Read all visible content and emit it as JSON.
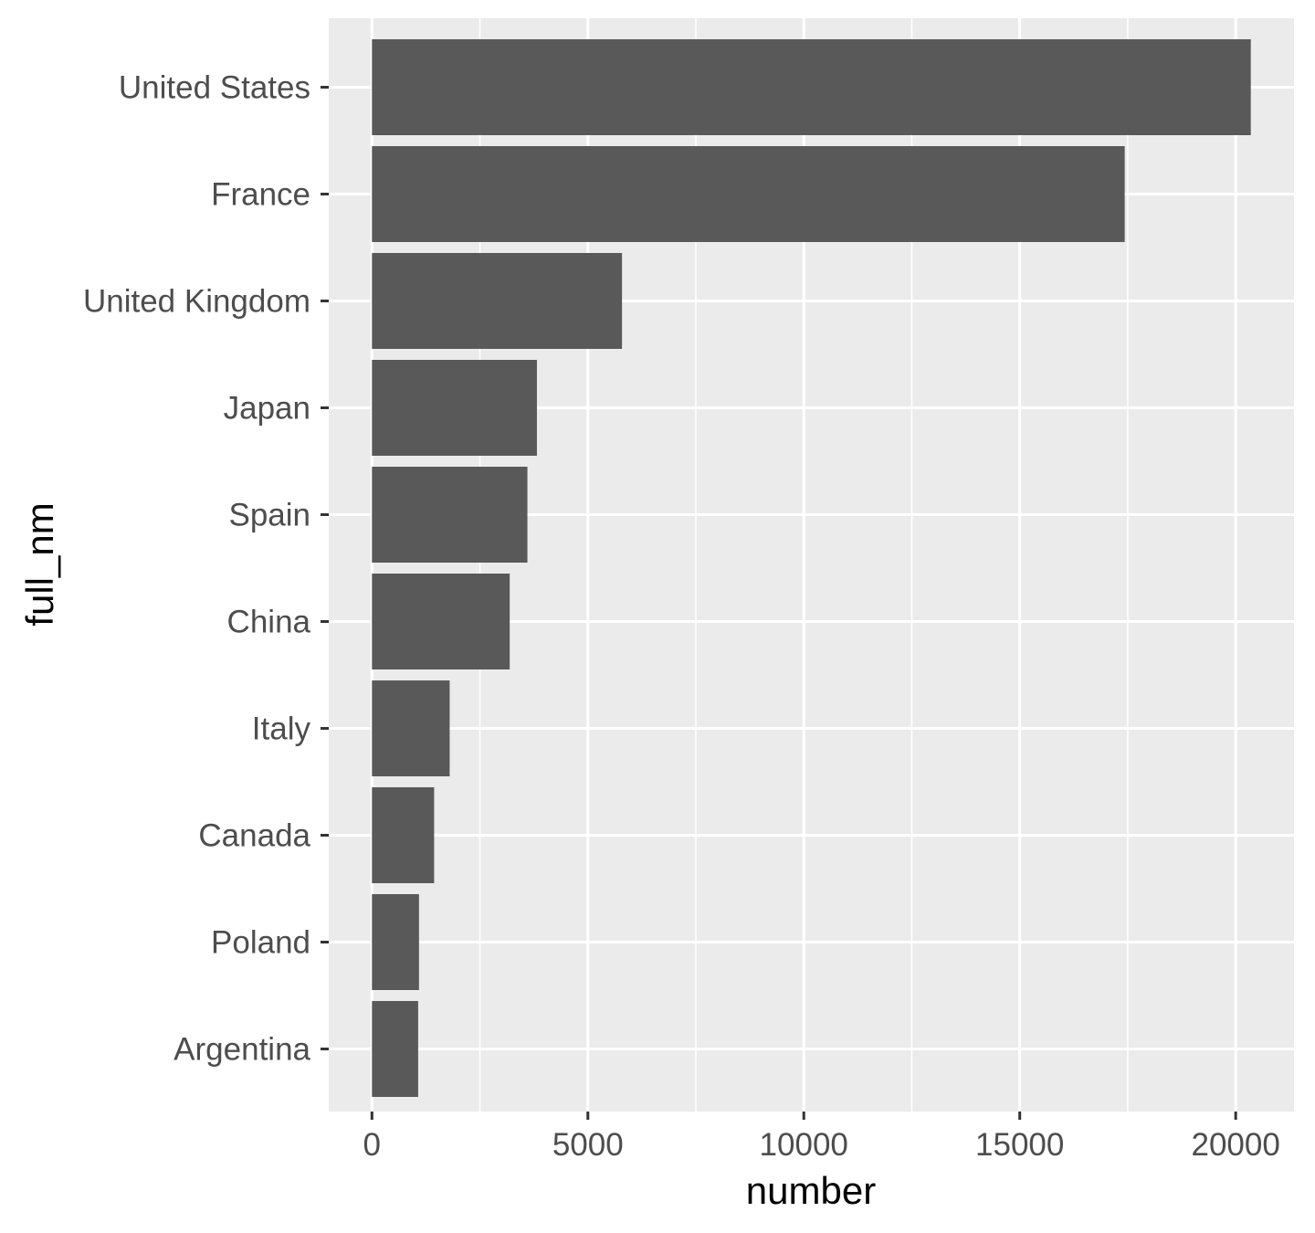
{
  "chart_data": {
    "type": "bar",
    "orientation": "horizontal",
    "categories": [
      "United States",
      "France",
      "United Kingdom",
      "Japan",
      "Spain",
      "China",
      "Italy",
      "Canada",
      "Poland",
      "Argentina"
    ],
    "values": [
      20350,
      17430,
      5790,
      3820,
      3600,
      3190,
      1800,
      1440,
      1090,
      1070
    ],
    "xlabel": "number",
    "ylabel": "full_nm",
    "xlim": [
      -1000,
      21350
    ],
    "x_ticks": [
      0,
      5000,
      10000,
      15000,
      20000
    ],
    "grid": true,
    "colors": {
      "bar": "#595959",
      "panel": "#ebebeb",
      "grid": "#ffffff",
      "tick": "#333333",
      "tick_label": "#4d4d4d"
    }
  }
}
